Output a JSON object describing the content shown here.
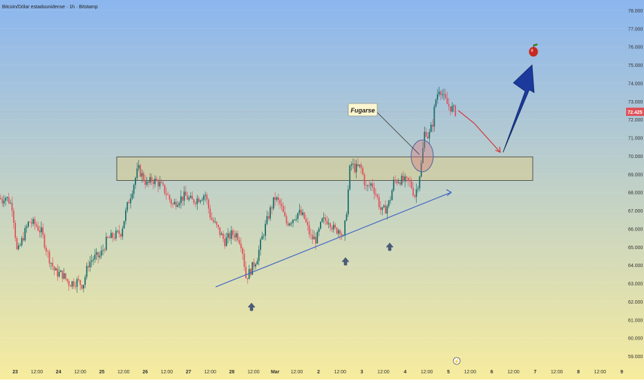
{
  "chart_data": {
    "type": "candlestick",
    "title": "Bitcoin/Dólar estadounidense · 1h · Bitstamp",
    "colors": {
      "bg_top": "#8bb6ef",
      "bg_bottom": "#f7ec9e",
      "up_candle": "#1a6e6a",
      "down_candle": "#e0515a",
      "support_line": "#3d62c6",
      "arrow_main": "#1b3a9c",
      "arrow_small": "#d13a3a",
      "zone_fill": "#d9cc8f",
      "price_badge": "#e0515a"
    },
    "y_axis": {
      "min": 59.0,
      "max": 78.0,
      "ticks": [
        "78.000",
        "77.000",
        "76.000",
        "75.000",
        "74.000",
        "73.000",
        "72.000",
        "71.000",
        "70.000",
        "69.000",
        "68.000",
        "67.000",
        "66.000",
        "65.000",
        "64.000",
        "63.000",
        "62.000",
        "61.000",
        "60.000",
        "59.000"
      ]
    },
    "x_axis": {
      "ticks": [
        "23",
        "12:00",
        "24",
        "12:00",
        "25",
        "12:00",
        "26",
        "12:00",
        "27",
        "12:00",
        "28",
        "12:00",
        "Mar",
        "12:00",
        "2",
        "12:00",
        "3",
        "12:00",
        "4",
        "12:00",
        "5",
        "12:00",
        "6",
        "12:00",
        "7",
        "12:00",
        "8",
        "12:00",
        "9"
      ]
    },
    "last_price": "72.425",
    "resistance_zone": {
      "low": 68.65,
      "high": 69.95
    },
    "annotation": "Fugarse",
    "legend_marker": "⚡",
    "series": {
      "close_path": [
        [
          0,
          67.7
        ],
        [
          3,
          67.5
        ],
        [
          6,
          67.8
        ],
        [
          12,
          67.6
        ],
        [
          18,
          67.2
        ],
        [
          25,
          64.6
        ],
        [
          33,
          65.5
        ],
        [
          42,
          66.4
        ],
        [
          52,
          66.2
        ],
        [
          60,
          65.8
        ],
        [
          70,
          64.5
        ],
        [
          80,
          63.6
        ],
        [
          90,
          63.5
        ],
        [
          100,
          63.0
        ],
        [
          112,
          63.1
        ],
        [
          120,
          62.9
        ],
        [
          128,
          64.1
        ],
        [
          136,
          64.4
        ],
        [
          145,
          64.5
        ],
        [
          155,
          65.4
        ],
        [
          165,
          65.6
        ],
        [
          175,
          65.8
        ],
        [
          184,
          67.2
        ],
        [
          193,
          68.4
        ],
        [
          200,
          69.3
        ],
        [
          206,
          68.9
        ],
        [
          213,
          68.4
        ],
        [
          220,
          68.7
        ],
        [
          230,
          68.5
        ],
        [
          240,
          68.0
        ],
        [
          250,
          67.3
        ],
        [
          258,
          67.6
        ],
        [
          268,
          67.8
        ],
        [
          278,
          67.5
        ],
        [
          288,
          67.7
        ],
        [
          297,
          67.9
        ],
        [
          305,
          66.6
        ],
        [
          315,
          66.0
        ],
        [
          325,
          65.3
        ],
        [
          335,
          65.7
        ],
        [
          343,
          65.7
        ],
        [
          350,
          65.1
        ],
        [
          356,
          63.3
        ],
        [
          364,
          63.8
        ],
        [
          372,
          64.4
        ],
        [
          380,
          65.6
        ],
        [
          390,
          66.9
        ],
        [
          398,
          67.7
        ],
        [
          406,
          67.3
        ],
        [
          414,
          66.3
        ],
        [
          422,
          66.5
        ],
        [
          432,
          66.9
        ],
        [
          440,
          66.6
        ],
        [
          450,
          65.5
        ],
        [
          458,
          65.4
        ],
        [
          466,
          66.4
        ],
        [
          476,
          66.5
        ],
        [
          484,
          65.9
        ],
        [
          492,
          66.0
        ],
        [
          497,
          65.4
        ],
        [
          502,
          67.2
        ],
        [
          507,
          69.6
        ],
        [
          514,
          69.3
        ],
        [
          522,
          69.4
        ],
        [
          530,
          68.2
        ],
        [
          538,
          68.5
        ],
        [
          546,
          67.7
        ],
        [
          552,
          66.9
        ],
        [
          558,
          67.1
        ],
        [
          564,
          67.5
        ],
        [
          570,
          68.6
        ],
        [
          578,
          68.7
        ],
        [
          586,
          68.6
        ],
        [
          594,
          68.5
        ],
        [
          600,
          67.8
        ],
        [
          605,
          68.5
        ],
        [
          610,
          69.6
        ],
        [
          615,
          71.5
        ],
        [
          620,
          71.0
        ],
        [
          626,
          71.8
        ],
        [
          630,
          73.0
        ],
        [
          636,
          73.8
        ],
        [
          642,
          73.2
        ],
        [
          648,
          72.8
        ],
        [
          654,
          72.6
        ],
        [
          660,
          72.4
        ]
      ]
    },
    "arrow_path": [
      [
        663,
        72.5
      ],
      [
        686,
        71.8
      ],
      [
        724,
        70.2
      ]
    ],
    "bounce_arrow": [
      [
        728,
        70.2
      ],
      [
        770,
        75.0
      ]
    ],
    "support_line_pts": [
      [
        312,
        62.8
      ],
      [
        653,
        68.0
      ]
    ],
    "up_markers": [
      [
        364,
        62.6
      ],
      [
        500,
        65.1
      ],
      [
        564,
        65.9
      ]
    ],
    "circle_center": [
      611,
      70.0
    ],
    "apple_position": [
      772,
      75.8
    ]
  }
}
